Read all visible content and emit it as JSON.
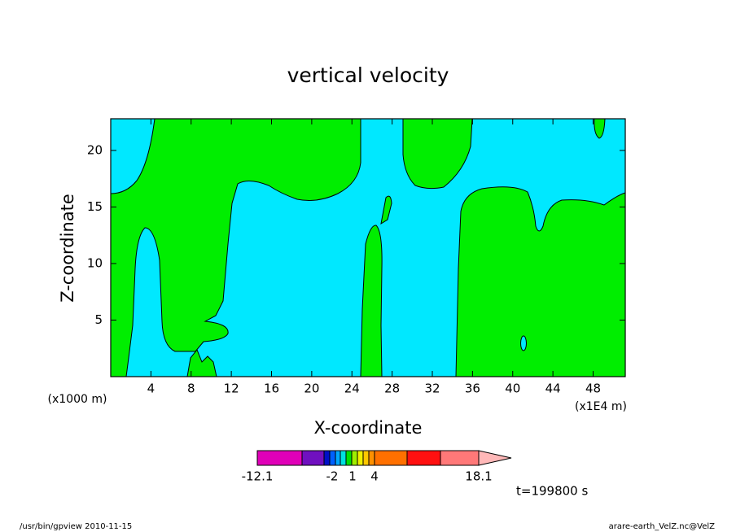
{
  "chart_data": {
    "type": "contour",
    "title": "vertical velocity",
    "x_label": "X-coordinate",
    "y_label": "Z-coordinate",
    "x_unit_left": "(x1000 m)",
    "x_unit_right": "(x1E4 m)",
    "xlim": [
      0,
      51.2
    ],
    "xticks": [
      4,
      8,
      12,
      16,
      20,
      24,
      28,
      32,
      36,
      40,
      44,
      48
    ],
    "ylim": [
      0,
      22.8
    ],
    "yticks": [
      5,
      10,
      15,
      20
    ],
    "field_colors": [
      "#00e8ff",
      "#00ee00"
    ],
    "colorbar_colors": [
      "#e000b8",
      "#7010c0",
      "#0010c8",
      "#0060ff",
      "#00a8ff",
      "#00e0e0",
      "#00e000",
      "#a0ee00",
      "#f0f000",
      "#ffc800",
      "#ff9000",
      "#ff7000",
      "#ff1010",
      "#ff7878",
      "#ffb8b8"
    ],
    "colorbar_ticks": [
      -12.1,
      -2,
      1,
      4,
      18.1
    ],
    "time_label": "t=199800 s",
    "footer_left": "/usr/bin/gpview  2010-11-15",
    "footer_right": "arare-earth_VelZ.nc@VelZ"
  }
}
